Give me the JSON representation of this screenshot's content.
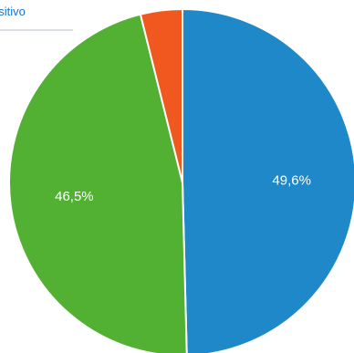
{
  "tab": {
    "label": "ositivo"
  },
  "colors": {
    "tab_text": "#1a73c9",
    "tab_underline": "#d9dee3",
    "label_text": "#ffffff",
    "slice_border": "#ffffff"
  },
  "chart_data": {
    "type": "pie",
    "title": "",
    "start_angle_deg": 0,
    "direction": "clockwise",
    "slices": [
      {
        "value": 49.6,
        "label": "49,6%",
        "color": "#1e88c8"
      },
      {
        "value": 46.5,
        "label": "46,5%",
        "color": "#52b132"
      },
      {
        "value": 3.9,
        "label": "",
        "color": "#f0581f"
      }
    ]
  }
}
